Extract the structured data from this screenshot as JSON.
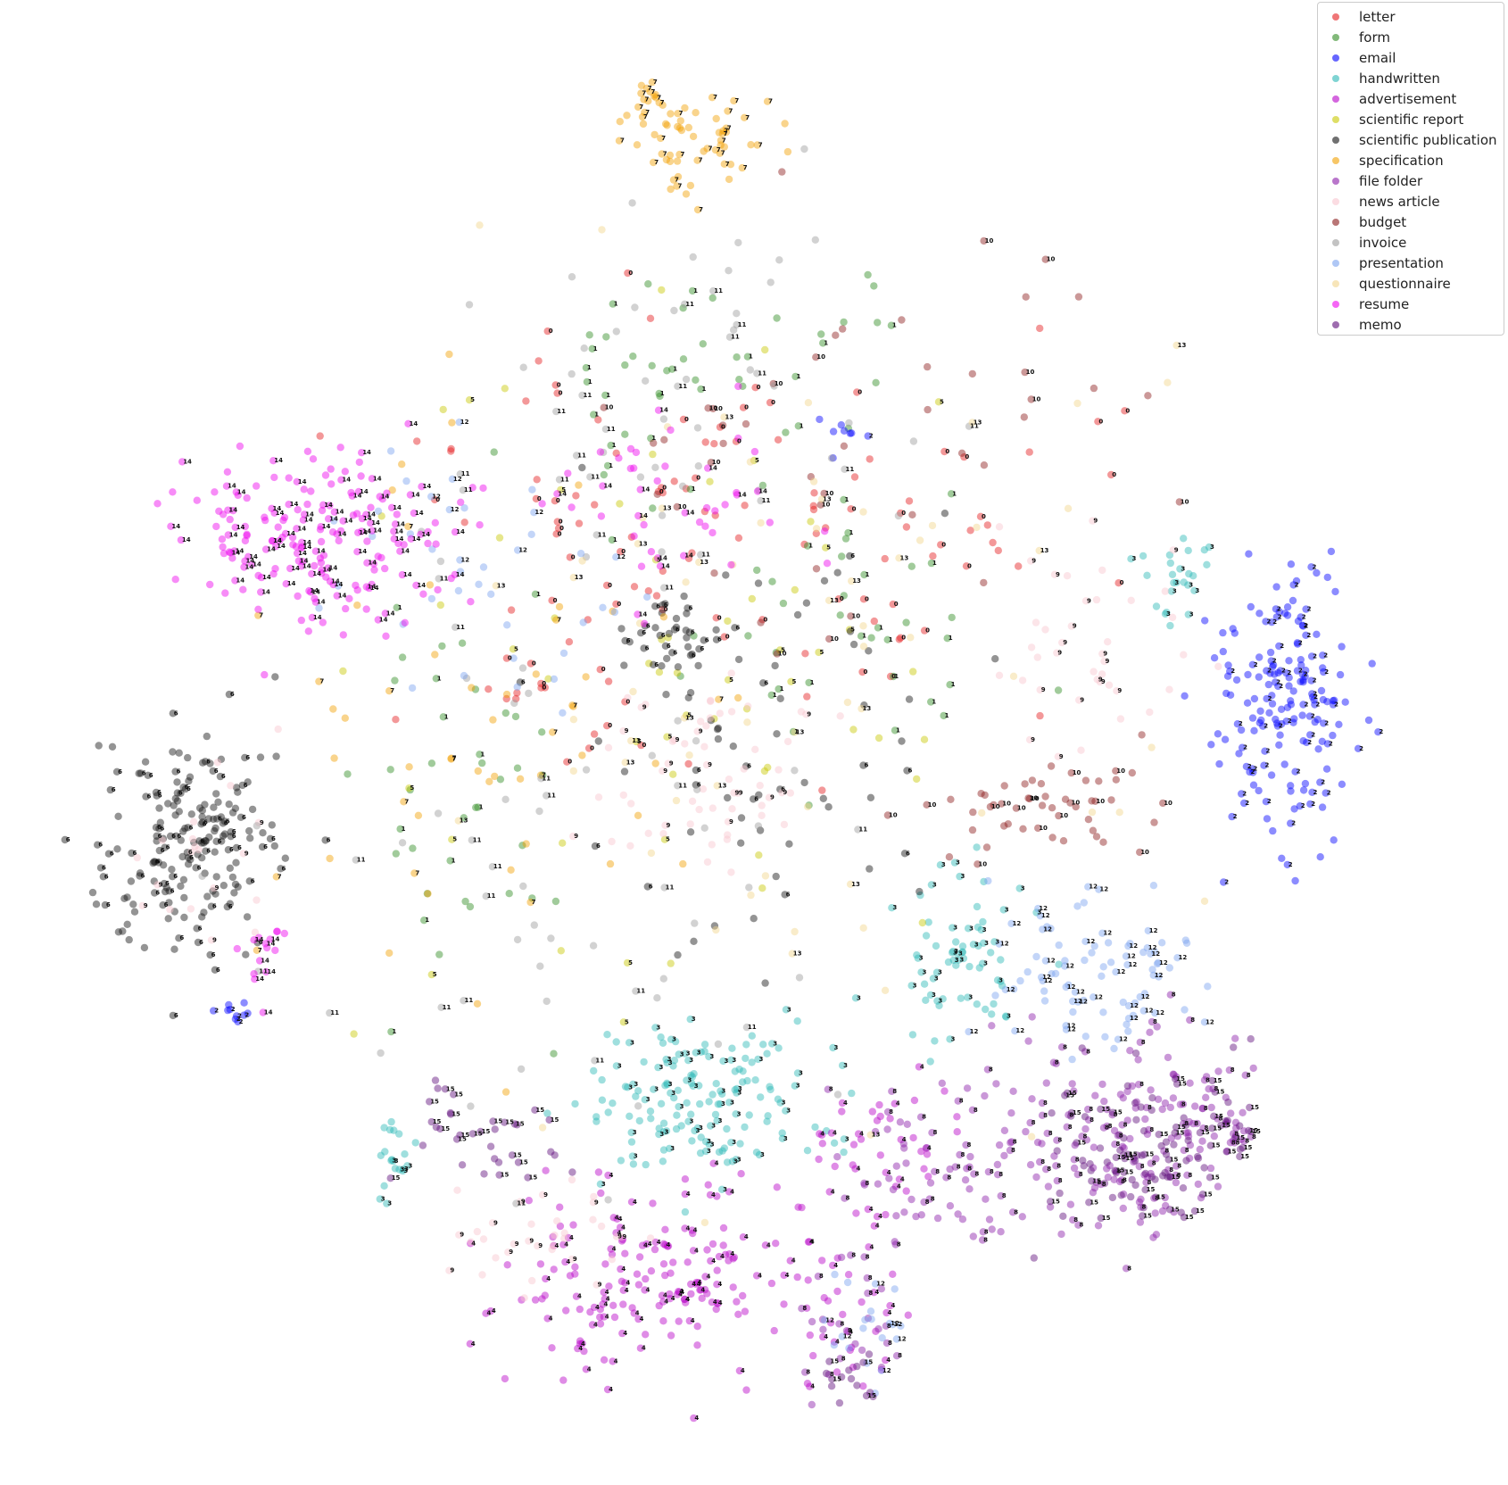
{
  "chart_data": {
    "type": "scatter",
    "title": "",
    "xlabel": "",
    "ylabel": "",
    "axes_visible": false,
    "grid": false,
    "xlim": [
      0,
      100
    ],
    "ylim": [
      0,
      100
    ],
    "legend": {
      "position": "top-right",
      "entries": [
        {
          "label": "letter",
          "color": "#e41a1c"
        },
        {
          "label": "form",
          "color": "#2e8b22"
        },
        {
          "label": "email",
          "color": "#0000ff"
        },
        {
          "label": "handwritten",
          "color": "#2ab7b5"
        },
        {
          "label": "advertisement",
          "color": "#b700c8"
        },
        {
          "label": "scientific report",
          "color": "#c8c800"
        },
        {
          "label": "scientific publication",
          "color": "#111111"
        },
        {
          "label": "specification",
          "color": "#f2a000"
        },
        {
          "label": "file folder",
          "color": "#8a1aa8"
        },
        {
          "label": "news article",
          "color": "#f9c5cf"
        },
        {
          "label": "budget",
          "color": "#8b1a1a"
        },
        {
          "label": "invoice",
          "color": "#9b9b9b"
        },
        {
          "label": "presentation",
          "color": "#7aa1ef"
        },
        {
          "label": "questionnaire",
          "color": "#f2d48a"
        },
        {
          "label": "resume",
          "color": "#ee00ee"
        },
        {
          "label": "memo",
          "color": "#5e0c7a"
        }
      ]
    },
    "point_label_values": [
      "0",
      "1",
      "2",
      "3",
      "4",
      "5",
      "6",
      "7",
      "8",
      "9",
      "10",
      "11",
      "12",
      "13",
      "14",
      "15"
    ],
    "series": [
      {
        "name": "letter",
        "color": "#e41a1c",
        "clusters": [
          {
            "x": 40,
            "y": 70,
            "sx": 6,
            "sy": 6,
            "n": 50,
            "lbl": "0"
          },
          {
            "x": 60,
            "y": 65,
            "sx": 8,
            "sy": 6,
            "n": 50,
            "lbl": "0"
          },
          {
            "x": 35,
            "y": 55,
            "sx": 4,
            "sy": 4,
            "n": 25,
            "lbl": "0"
          }
        ]
      },
      {
        "name": "form",
        "color": "#2e8b22",
        "clusters": [
          {
            "x": 48,
            "y": 78,
            "sx": 7,
            "sy": 5,
            "n": 50,
            "lbl": "1"
          },
          {
            "x": 30,
            "y": 48,
            "sx": 4,
            "sy": 8,
            "n": 40,
            "lbl": "1"
          },
          {
            "x": 58,
            "y": 58,
            "sx": 7,
            "sy": 5,
            "n": 35,
            "lbl": "1"
          }
        ]
      },
      {
        "name": "email",
        "color": "#0000ff",
        "clusters": [
          {
            "x": 88,
            "y": 54,
            "sx": 2.5,
            "sy": 5,
            "n": 180,
            "lbl": "2"
          },
          {
            "x": 13,
            "y": 31,
            "sx": 0.8,
            "sy": 0.6,
            "n": 10,
            "lbl": "2"
          },
          {
            "x": 56,
            "y": 73,
            "sx": 1.5,
            "sy": 1,
            "n": 8,
            "lbl": "2"
          }
        ]
      },
      {
        "name": "handwritten",
        "color": "#2ab7b5",
        "clusters": [
          {
            "x": 46,
            "y": 25,
            "sx": 4.5,
            "sy": 2.5,
            "n": 160,
            "lbl": "3"
          },
          {
            "x": 65,
            "y": 36,
            "sx": 2.5,
            "sy": 3,
            "n": 70,
            "lbl": "3"
          },
          {
            "x": 80,
            "y": 62,
            "sx": 1.5,
            "sy": 1.5,
            "n": 25,
            "lbl": "3"
          },
          {
            "x": 24,
            "y": 20,
            "sx": 1,
            "sy": 2,
            "n": 20,
            "lbl": "3"
          }
        ]
      },
      {
        "name": "advertisement",
        "color": "#b700c8",
        "clusters": [
          {
            "x": 43,
            "y": 12,
            "sx": 6,
            "sy": 3.5,
            "n": 190,
            "lbl": "4"
          },
          {
            "x": 60,
            "y": 22,
            "sx": 3,
            "sy": 2.5,
            "n": 40,
            "lbl": "4"
          },
          {
            "x": 57,
            "y": 9,
            "sx": 2,
            "sy": 3,
            "n": 25,
            "lbl": "4"
          }
        ]
      },
      {
        "name": "scientific report",
        "color": "#c8c800",
        "clusters": [
          {
            "x": 45,
            "y": 55,
            "sx": 12,
            "sy": 12,
            "n": 60,
            "lbl": "5"
          }
        ]
      },
      {
        "name": "scientific publication",
        "color": "#111111",
        "clusters": [
          {
            "x": 10,
            "y": 43,
            "sx": 3,
            "sy": 4,
            "n": 190,
            "lbl": "6"
          },
          {
            "x": 44,
            "y": 58,
            "sx": 2,
            "sy": 2,
            "n": 40,
            "lbl": "6"
          },
          {
            "x": 50,
            "y": 49,
            "sx": 7,
            "sy": 8,
            "n": 60,
            "lbl": "6"
          }
        ]
      },
      {
        "name": "specification",
        "color": "#f2a000",
        "clusters": [
          {
            "x": 46,
            "y": 93,
            "sx": 2.5,
            "sy": 2,
            "n": 60,
            "lbl": "7"
          },
          {
            "x": 42,
            "y": 97,
            "sx": 1,
            "sy": 1,
            "n": 15,
            "lbl": "7"
          },
          {
            "x": 30,
            "y": 50,
            "sx": 10,
            "sy": 10,
            "n": 55,
            "lbl": "7"
          }
        ]
      },
      {
        "name": "file folder",
        "color": "#8a1aa8",
        "clusters": [
          {
            "x": 79,
            "y": 22,
            "sx": 5,
            "sy": 4,
            "n": 180,
            "lbl": "8"
          },
          {
            "x": 64,
            "y": 20,
            "sx": 4,
            "sy": 3,
            "n": 80,
            "lbl": "8"
          },
          {
            "x": 57,
            "y": 8,
            "sx": 2,
            "sy": 3,
            "n": 25,
            "lbl": "8"
          }
        ]
      },
      {
        "name": "news article",
        "color": "#f9c5cf",
        "clusters": [
          {
            "x": 47,
            "y": 48,
            "sx": 5,
            "sy": 4,
            "n": 60,
            "lbl": "9"
          },
          {
            "x": 74,
            "y": 58,
            "sx": 4,
            "sy": 4,
            "n": 40,
            "lbl": "9"
          },
          {
            "x": 34,
            "y": 15,
            "sx": 3,
            "sy": 2,
            "n": 35,
            "lbl": "9"
          },
          {
            "x": 10,
            "y": 42,
            "sx": 2.5,
            "sy": 3,
            "n": 20,
            "lbl": "9"
          }
        ]
      },
      {
        "name": "budget",
        "color": "#8b1a1a",
        "clusters": [
          {
            "x": 70,
            "y": 46,
            "sx": 5,
            "sy": 2,
            "n": 50,
            "lbl": "10"
          },
          {
            "x": 58,
            "y": 72,
            "sx": 10,
            "sy": 8,
            "n": 45,
            "lbl": "10"
          }
        ]
      },
      {
        "name": "invoice",
        "color": "#9b9b9b",
        "clusters": [
          {
            "x": 45,
            "y": 75,
            "sx": 8,
            "sy": 8,
            "n": 60,
            "lbl": "11"
          },
          {
            "x": 35,
            "y": 40,
            "sx": 10,
            "sy": 10,
            "n": 55,
            "lbl": "11"
          }
        ]
      },
      {
        "name": "presentation",
        "color": "#7aa1ef",
        "clusters": [
          {
            "x": 74,
            "y": 34,
            "sx": 4,
            "sy": 3,
            "n": 90,
            "lbl": "12"
          },
          {
            "x": 33,
            "y": 62,
            "sx": 6,
            "sy": 5,
            "n": 40,
            "lbl": "12"
          },
          {
            "x": 58,
            "y": 8,
            "sx": 2,
            "sy": 2.5,
            "n": 20,
            "lbl": "12"
          }
        ]
      },
      {
        "name": "questionnaire",
        "color": "#f2d48a",
        "clusters": [
          {
            "x": 50,
            "y": 55,
            "sx": 14,
            "sy": 14,
            "n": 70,
            "lbl": "13"
          }
        ]
      },
      {
        "name": "resume",
        "color": "#ee00ee",
        "clusters": [
          {
            "x": 19,
            "y": 65,
            "sx": 5,
            "sy": 2.8,
            "n": 200,
            "lbl": "14"
          },
          {
            "x": 44,
            "y": 68,
            "sx": 5,
            "sy": 3,
            "n": 45,
            "lbl": "14"
          },
          {
            "x": 15,
            "y": 35,
            "sx": 1,
            "sy": 1.5,
            "n": 15,
            "lbl": "14"
          }
        ]
      },
      {
        "name": "memo",
        "color": "#5e0c7a",
        "clusters": [
          {
            "x": 80,
            "y": 20,
            "sx": 5,
            "sy": 3.5,
            "n": 110,
            "lbl": "15"
          },
          {
            "x": 30,
            "y": 22,
            "sx": 3,
            "sy": 2,
            "n": 35,
            "lbl": "15"
          },
          {
            "x": 57,
            "y": 5,
            "sx": 1,
            "sy": 1.5,
            "n": 15,
            "lbl": "15"
          }
        ]
      }
    ]
  }
}
